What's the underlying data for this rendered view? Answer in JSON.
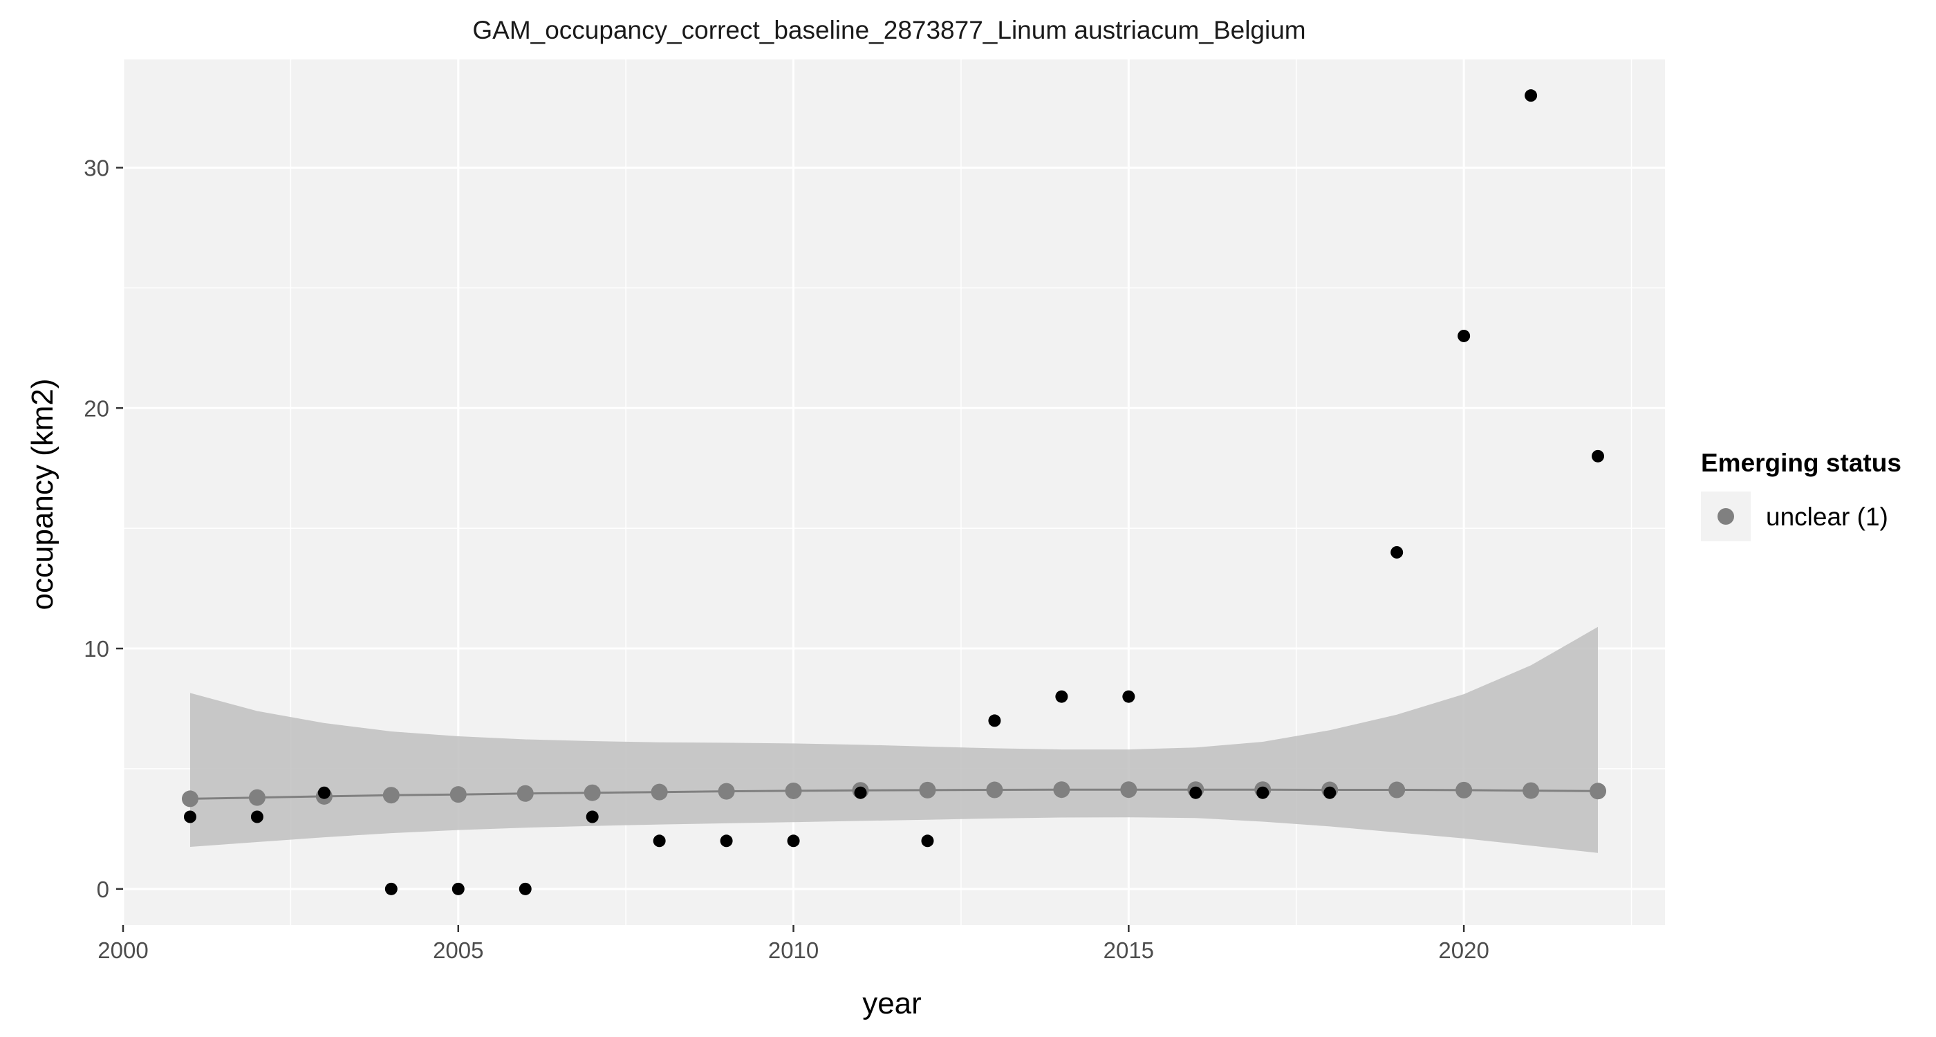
{
  "chart_data": {
    "type": "scatter",
    "title": "GAM_occupancy_correct_baseline_2873877_Linum austriacum_Belgium",
    "xlabel": "year",
    "ylabel": "occupancy (km2)",
    "xlim": [
      2000,
      2023
    ],
    "ylim": [
      -1.5,
      34.5
    ],
    "x_ticks": [
      2000,
      2005,
      2010,
      2015,
      2020
    ],
    "y_ticks": [
      0,
      10,
      20,
      30
    ],
    "x_tick_labels": [
      "2000",
      "2005",
      "2010",
      "2015",
      "2020"
    ],
    "y_tick_labels": [
      "0",
      "10",
      "20",
      "30"
    ],
    "grid": true,
    "legend": {
      "title": "Emerging status",
      "position": "right",
      "entries": [
        "unclear (1)"
      ]
    },
    "colors": {
      "panel": "#f2f2f2",
      "gridline": "#ffffff",
      "observed": "#000000",
      "fitted": "#808080",
      "ribbon": "#c0c0c0"
    },
    "series": [
      {
        "kind": "observed",
        "x": [
          2001,
          2002,
          2003,
          2004,
          2005,
          2006,
          2007,
          2008,
          2009,
          2010,
          2011,
          2012,
          2013,
          2014,
          2015,
          2016,
          2017,
          2018,
          2019,
          2020,
          2021,
          2022
        ],
        "y": [
          3,
          3,
          4,
          0,
          0,
          0,
          3,
          2,
          2,
          2,
          4,
          2,
          7,
          8,
          8,
          4,
          4,
          4,
          14,
          23,
          33,
          18
        ]
      },
      {
        "name": "unclear (1)",
        "kind": "fitted",
        "x": [
          2001,
          2002,
          2003,
          2004,
          2005,
          2006,
          2007,
          2008,
          2009,
          2010,
          2011,
          2012,
          2013,
          2014,
          2015,
          2016,
          2017,
          2018,
          2019,
          2020,
          2021,
          2022
        ],
        "y": [
          3.75,
          3.8,
          3.85,
          3.9,
          3.93,
          3.97,
          4.0,
          4.03,
          4.06,
          4.08,
          4.1,
          4.11,
          4.12,
          4.13,
          4.13,
          4.13,
          4.13,
          4.12,
          4.12,
          4.11,
          4.09,
          4.07
        ],
        "lower": [
          1.75,
          1.95,
          2.15,
          2.32,
          2.45,
          2.55,
          2.62,
          2.68,
          2.73,
          2.78,
          2.83,
          2.88,
          2.93,
          2.97,
          2.98,
          2.95,
          2.8,
          2.6,
          2.35,
          2.1,
          1.8,
          1.5
        ],
        "upper": [
          8.15,
          7.4,
          6.9,
          6.55,
          6.35,
          6.22,
          6.15,
          6.1,
          6.08,
          6.05,
          6.0,
          5.92,
          5.85,
          5.8,
          5.8,
          5.88,
          6.12,
          6.6,
          7.25,
          8.1,
          9.3,
          10.9
        ]
      }
    ]
  }
}
